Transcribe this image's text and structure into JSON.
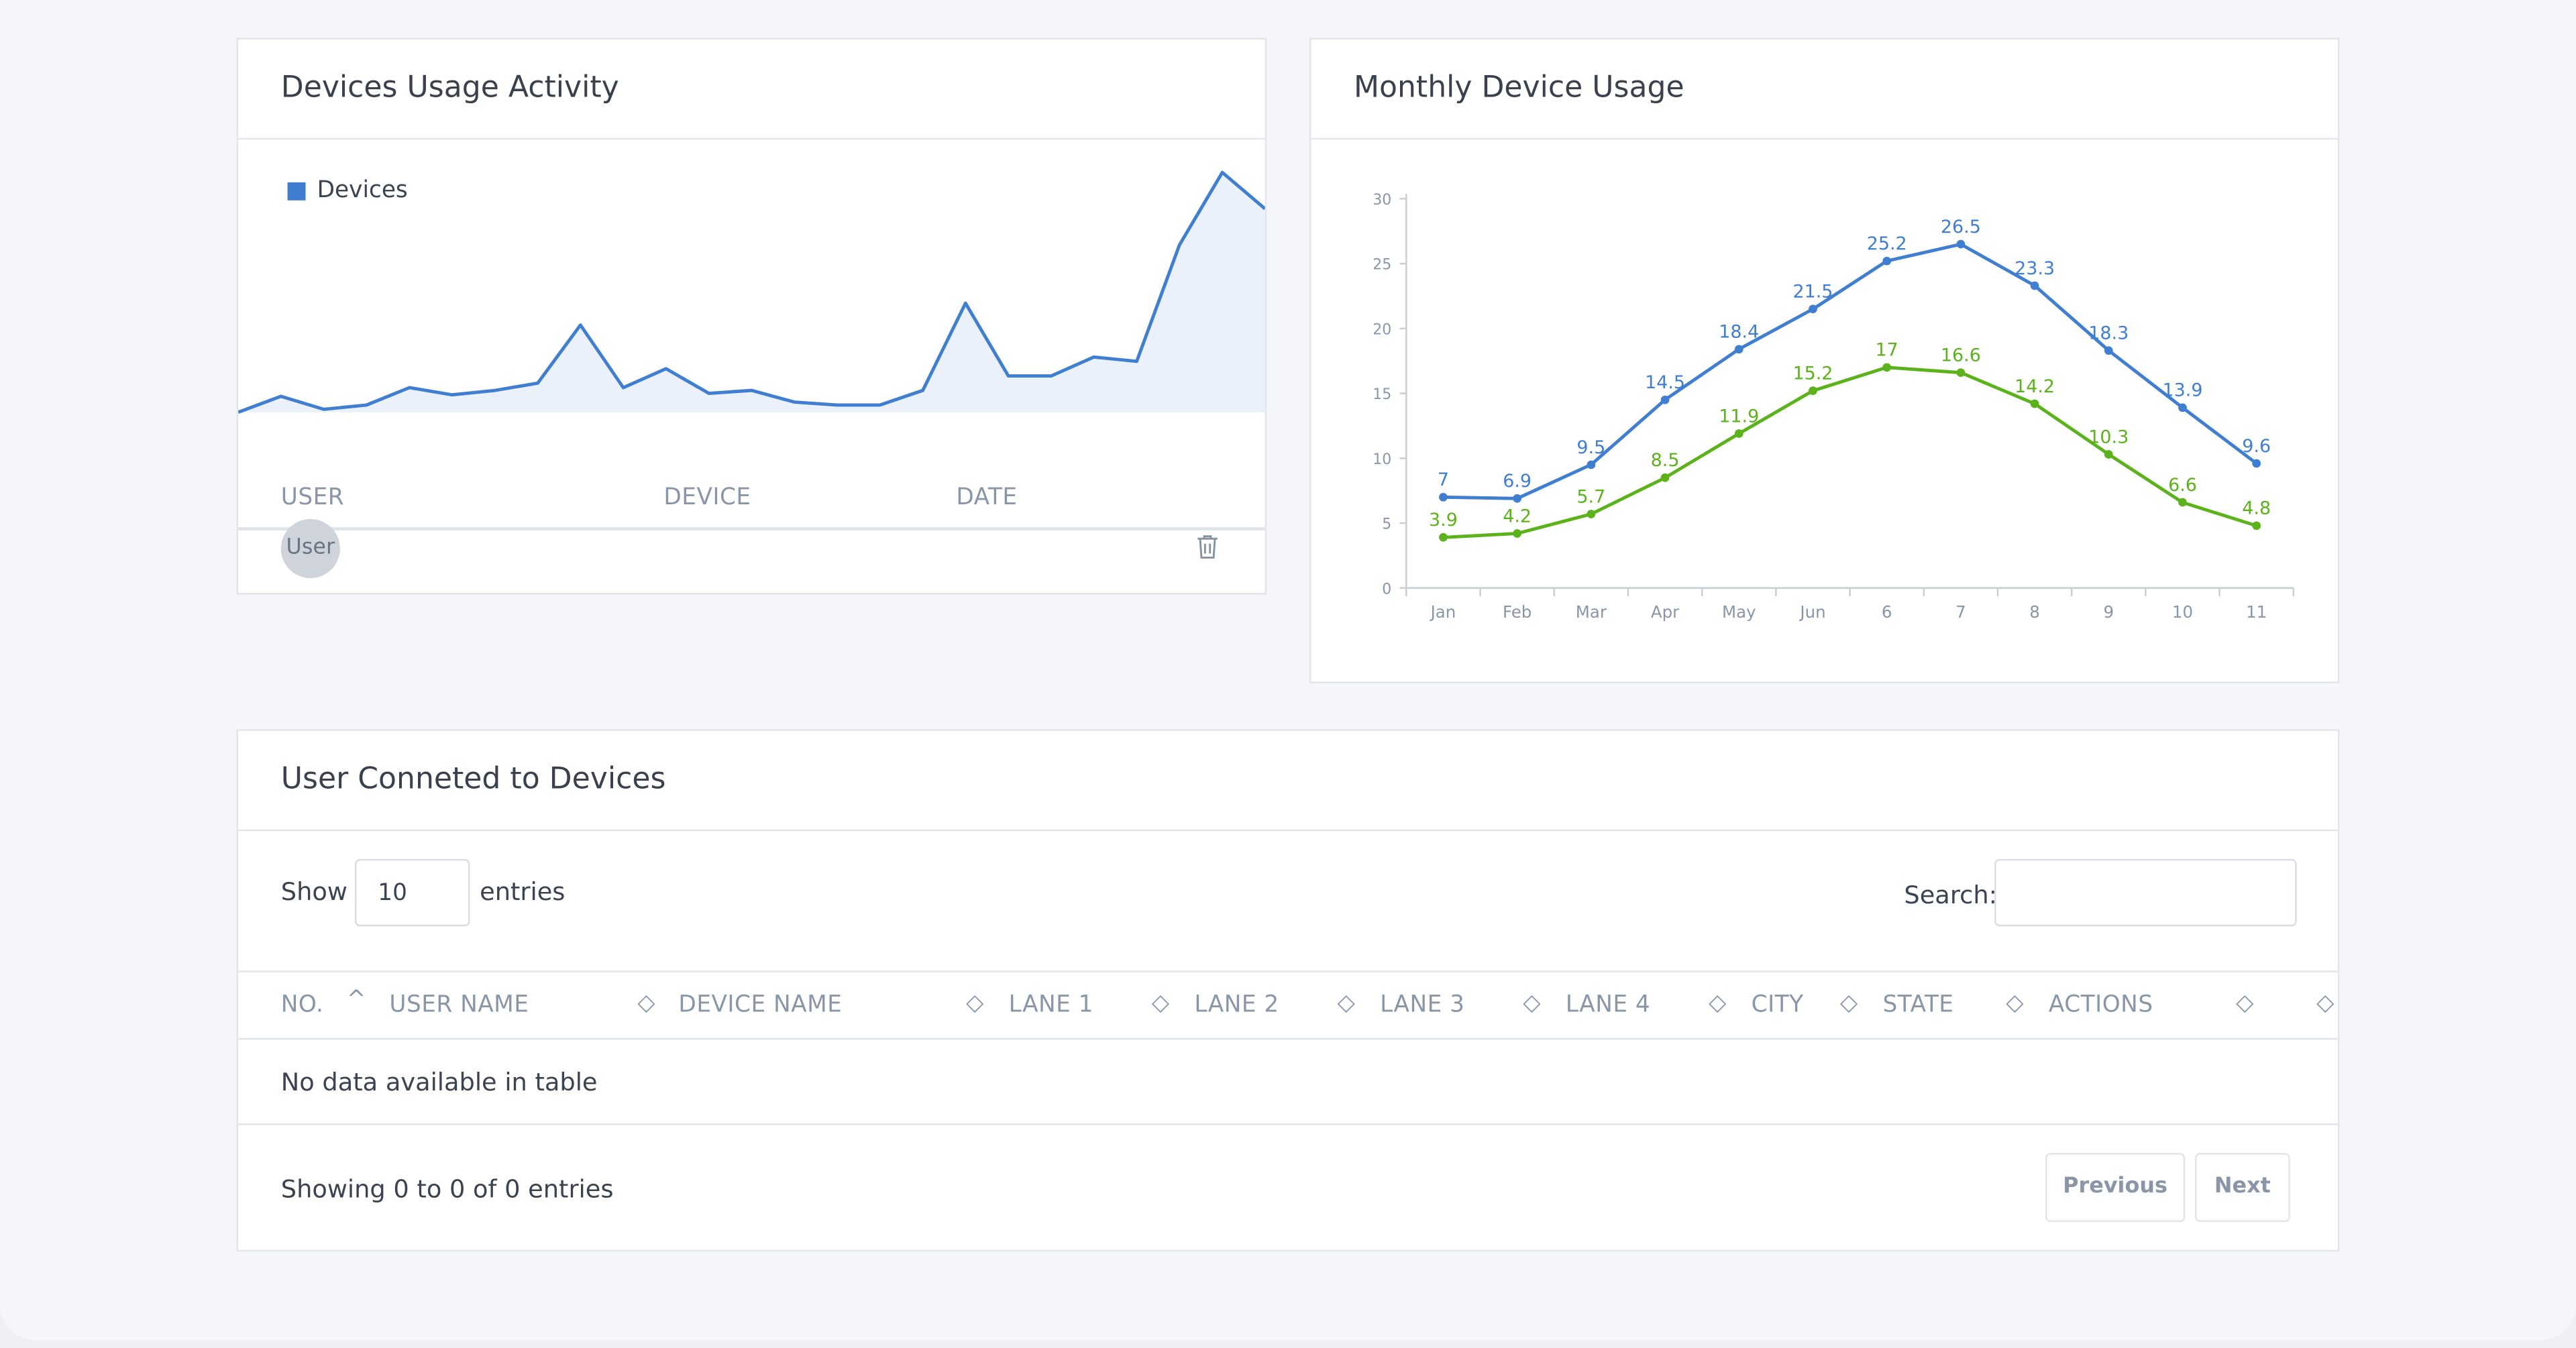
{
  "activity_card": {
    "title": "Devices Usage Activity",
    "legend_label": "Devices",
    "columns": [
      "USER",
      "DEVICE",
      "DATE"
    ],
    "row": {
      "avatar_text": "User"
    }
  },
  "monthly_card": {
    "title": "Monthly Device Usage"
  },
  "users_card": {
    "title": "User Conneted to Devices",
    "show_label": "Show",
    "entries_value": "10",
    "entries_label": "entries",
    "search_label": "Search:",
    "search_value": "",
    "columns": [
      "NO.",
      "USER NAME",
      "DEVICE NAME",
      "LANE 1",
      "LANE 2",
      "LANE 3",
      "LANE 4",
      "CITY",
      "STATE",
      "ACTIONS"
    ],
    "empty_message": "No data available in table",
    "info_text": "Showing 0 to 0 of 0 entries",
    "prev_label": "Previous",
    "next_label": "Next"
  },
  "colors": {
    "blue": "#3f7ed1",
    "green": "#5cb21b",
    "area_fill": "#eaf1fa"
  },
  "chart_data": [
    {
      "type": "area",
      "legend": [
        "Devices"
      ],
      "series": [
        {
          "name": "Devices",
          "values": [
            0,
            11,
            2,
            5,
            17,
            12,
            15,
            20,
            60,
            17,
            30,
            13,
            15,
            7,
            5,
            5,
            15,
            75,
            25,
            25,
            38,
            35,
            115,
            165,
            140
          ]
        }
      ],
      "grid": false
    },
    {
      "type": "line",
      "categories": [
        "Jan",
        "Feb",
        "Mar",
        "Apr",
        "May",
        "Jun",
        "6",
        "7",
        "8",
        "9",
        "10",
        "11"
      ],
      "ylim": [
        0,
        30
      ],
      "yticks": [
        0,
        5,
        10,
        15,
        20,
        25,
        30
      ],
      "series": [
        {
          "values": [
            7,
            6.9,
            9.5,
            14.5,
            18.4,
            21.5,
            25.2,
            26.5,
            23.3,
            18.3,
            13.9,
            9.6
          ],
          "color": "#3f7ed1"
        },
        {
          "values": [
            3.9,
            4.2,
            5.7,
            8.5,
            11.9,
            15.2,
            17,
            16.6,
            14.2,
            10.3,
            6.6,
            4.8
          ],
          "color": "#5cb21b"
        }
      ],
      "data_labels": true,
      "grid": false
    }
  ]
}
